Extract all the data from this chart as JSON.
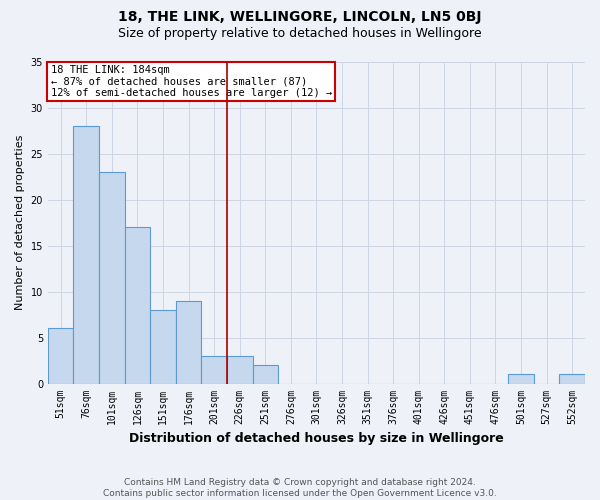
{
  "title": "18, THE LINK, WELLINGORE, LINCOLN, LN5 0BJ",
  "subtitle": "Size of property relative to detached houses in Wellingore",
  "xlabel": "Distribution of detached houses by size in Wellingore",
  "ylabel": "Number of detached properties",
  "categories": [
    "51sqm",
    "76sqm",
    "101sqm",
    "126sqm",
    "151sqm",
    "176sqm",
    "201sqm",
    "226sqm",
    "251sqm",
    "276sqm",
    "301sqm",
    "326sqm",
    "351sqm",
    "376sqm",
    "401sqm",
    "426sqm",
    "451sqm",
    "476sqm",
    "501sqm",
    "527sqm",
    "552sqm"
  ],
  "values": [
    6,
    28,
    23,
    17,
    8,
    9,
    3,
    3,
    2,
    0,
    0,
    0,
    0,
    0,
    0,
    0,
    0,
    0,
    1,
    0,
    1
  ],
  "bar_color": "#c5d8ed",
  "bar_edge_color": "#5b9bd5",
  "bar_edge_width": 0.8,
  "red_line_index": 6.5,
  "annotation_text": "18 THE LINK: 184sqm\n← 87% of detached houses are smaller (87)\n12% of semi-detached houses are larger (12) →",
  "annotation_box_color": "#ffffff",
  "annotation_box_edge": "#cc0000",
  "ylim": [
    0,
    35
  ],
  "yticks": [
    0,
    5,
    10,
    15,
    20,
    25,
    30,
    35
  ],
  "grid_color": "#cdd5e3",
  "background_color": "#eef1f8",
  "footer": "Contains HM Land Registry data © Crown copyright and database right 2024.\nContains public sector information licensed under the Open Government Licence v3.0.",
  "title_fontsize": 10,
  "subtitle_fontsize": 9,
  "xlabel_fontsize": 9,
  "ylabel_fontsize": 8,
  "tick_fontsize": 7,
  "annotation_fontsize": 7.5,
  "footer_fontsize": 6.5
}
